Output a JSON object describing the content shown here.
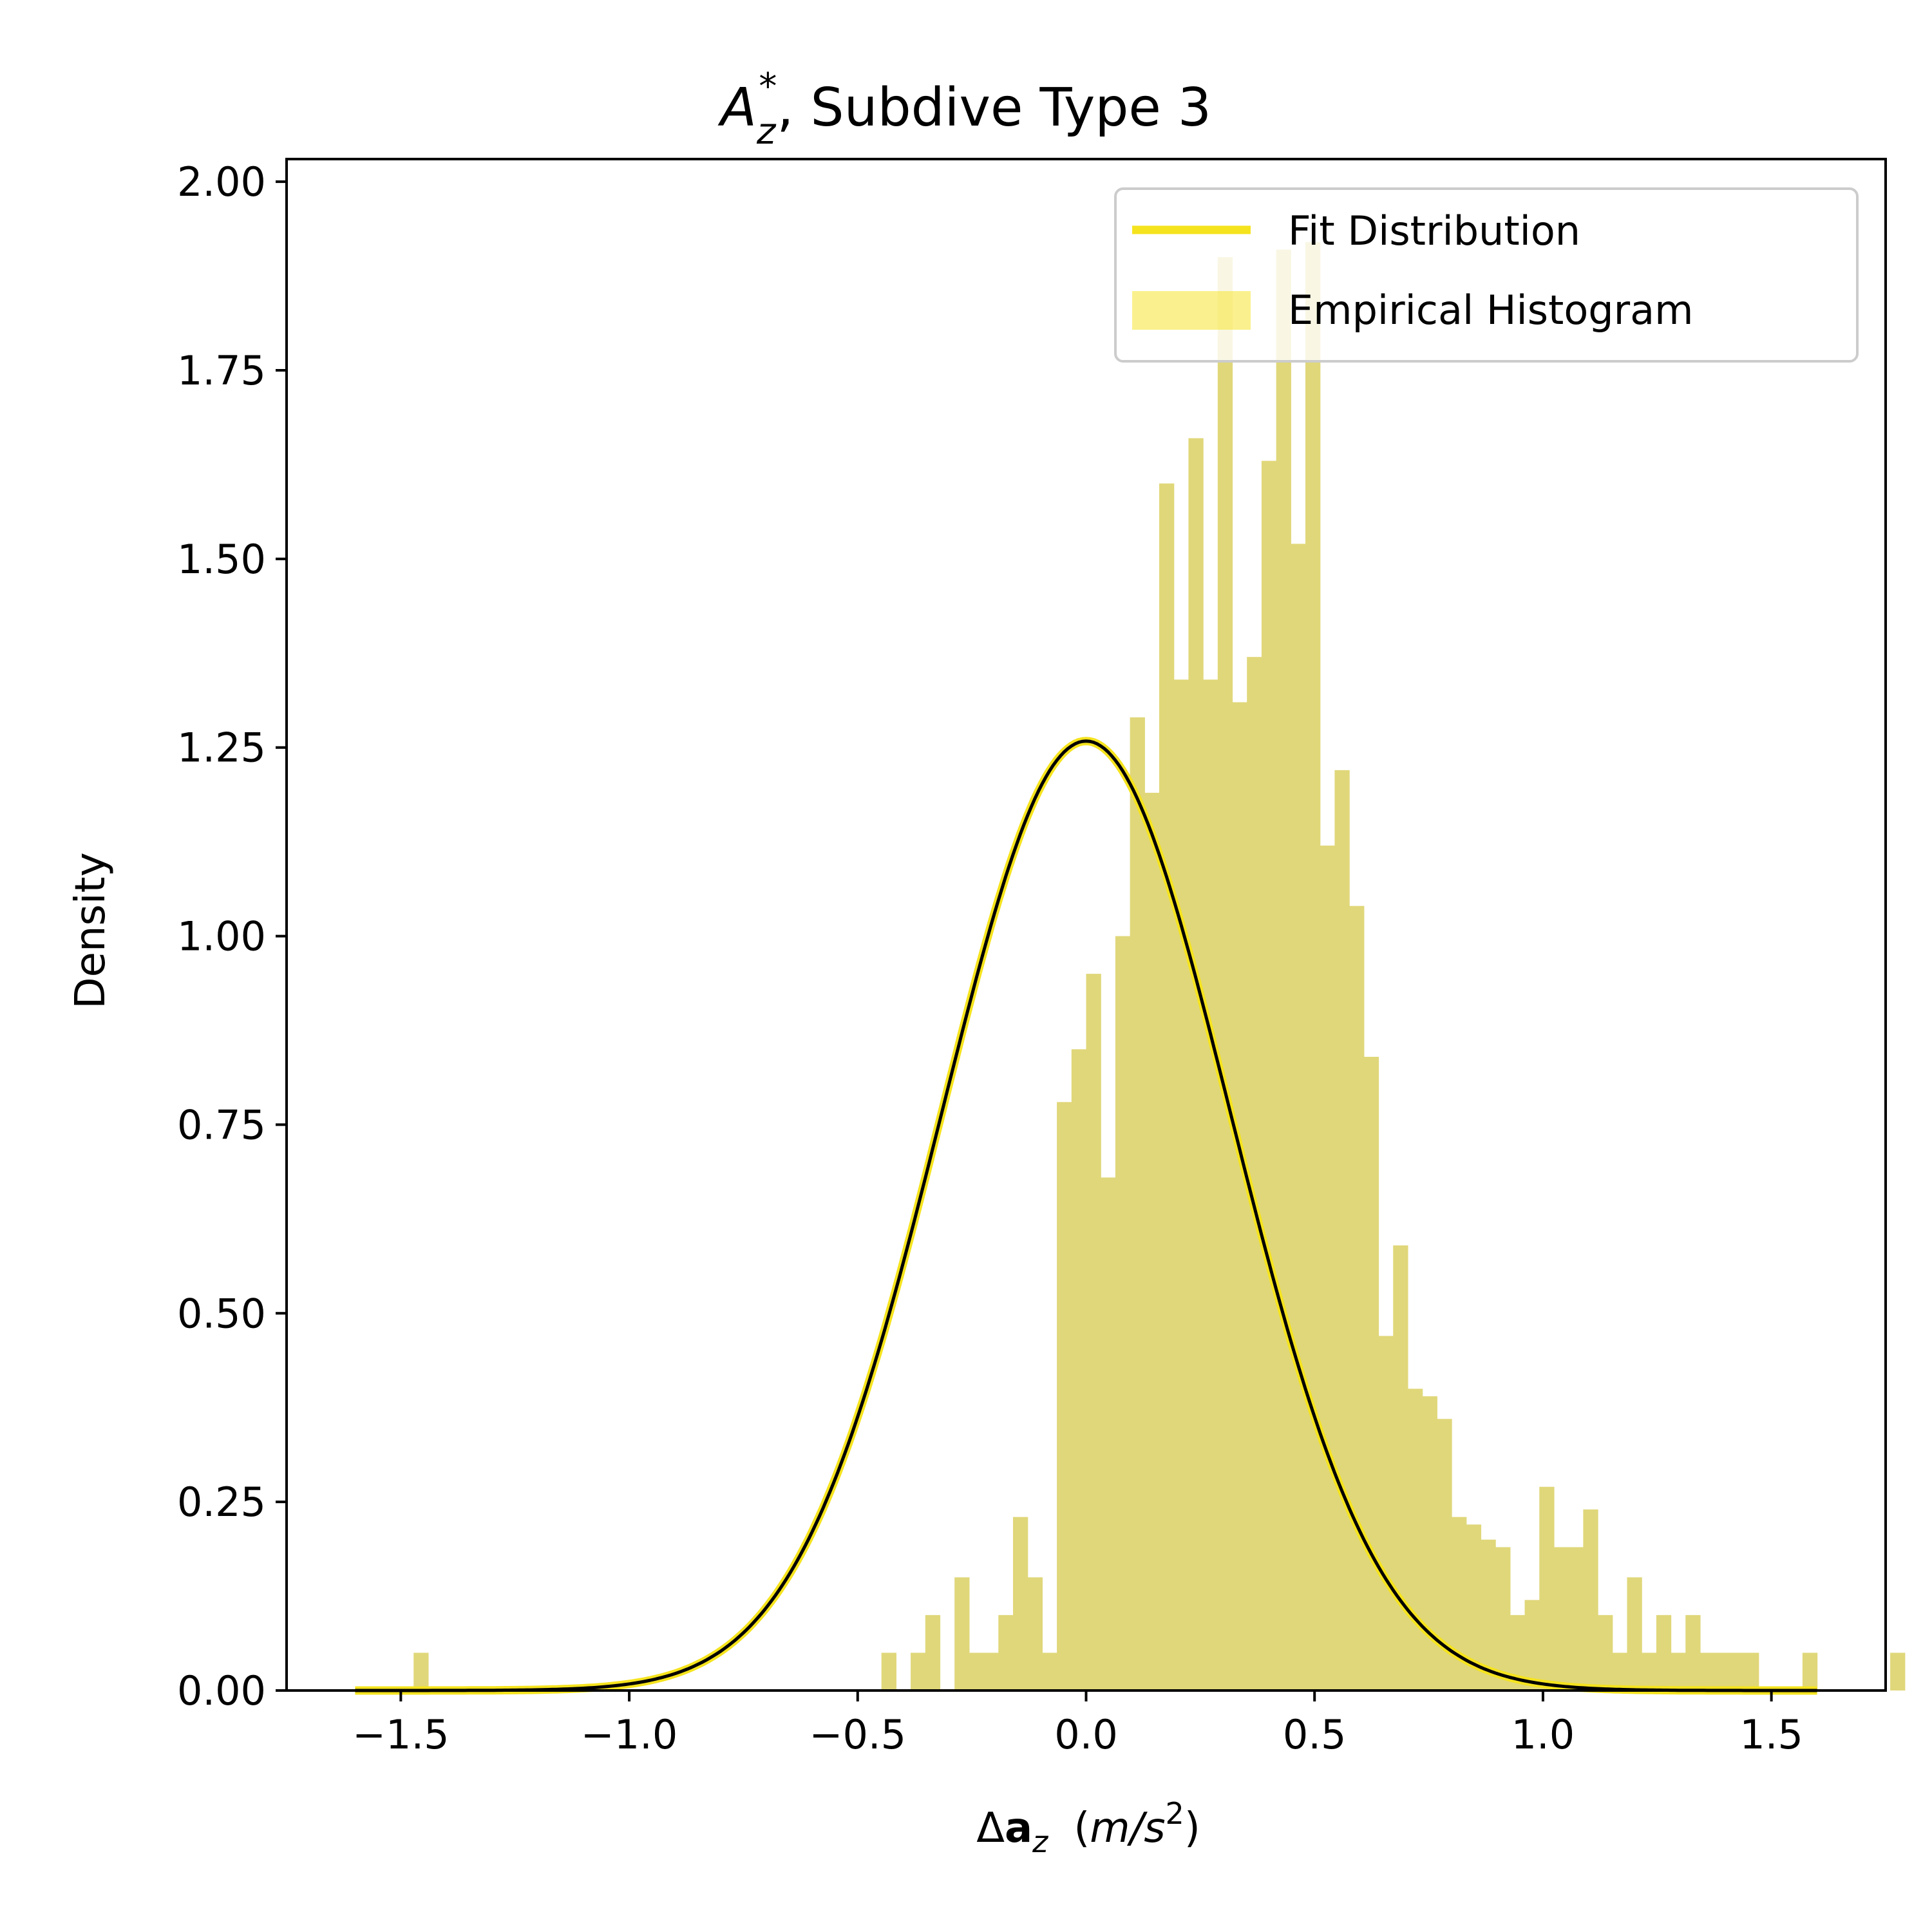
{
  "chart_data": {
    "type": "bar",
    "title_prefix": "A",
    "title_sub": "z",
    "title_sup": "*",
    "title_rest": ", Subdive Type 3",
    "xlabel_prefix": "Δ",
    "xlabel_bold": "a",
    "xlabel_sub": "z",
    "xlabel_unit_open": "(",
    "xlabel_unit_italic": "m/s",
    "xlabel_unit_sup": "2",
    "xlabel_unit_close": ")",
    "ylabel": "Density",
    "xlim": [
      -1.75,
      1.75
    ],
    "ylim": [
      0,
      2.03
    ],
    "x_ticks": [
      -1.5,
      -1.0,
      -0.5,
      0.0,
      0.5,
      1.0,
      1.5
    ],
    "x_tick_labels": [
      "−1.5",
      "−1.0",
      "−0.5",
      "0.0",
      "0.5",
      "1.0",
      "1.5"
    ],
    "y_ticks": [
      0,
      0.25,
      0.5,
      0.75,
      1.0,
      1.25,
      1.5,
      1.75,
      2.0
    ],
    "y_tick_labels": [
      "0.00",
      "0.25",
      "0.50",
      "0.75",
      "1.00",
      "1.25",
      "1.50",
      "1.75",
      "2.00"
    ],
    "histogram": {
      "name": "Empirical Histogram",
      "color": "#e0d77a",
      "bin_start": -1.6,
      "bin_width": 0.032,
      "values": [
        0,
        0,
        0,
        0,
        0.05,
        0,
        0,
        0,
        0,
        0,
        0,
        0,
        0,
        0,
        0,
        0,
        0,
        0,
        0,
        0,
        0,
        0,
        0,
        0,
        0,
        0,
        0,
        0,
        0,
        0,
        0,
        0,
        0,
        0,
        0,
        0,
        0.05,
        0,
        0.05,
        0.1,
        0,
        0.15,
        0.05,
        0.05,
        0.1,
        0.23,
        0.15,
        0.05,
        0.78,
        0.85,
        0.95,
        0.68,
        1.0,
        1.29,
        1.19,
        1.6,
        1.34,
        1.66,
        1.34,
        1.9,
        1.31,
        1.37,
        1.63,
        1.91,
        1.52,
        1.92,
        1.12,
        1.22,
        1.04,
        0.84,
        0.47,
        0.59,
        0.4,
        0.39,
        0.36,
        0.23,
        0.22,
        0.2,
        0.19,
        0.1,
        0.12,
        0.27,
        0.19,
        0.19,
        0.24,
        0.1,
        0.05,
        0.15,
        0.05,
        0.1,
        0.05,
        0.1,
        0.05,
        0.05,
        0.05,
        0.05,
        0,
        0,
        0,
        0.05,
        0,
        0,
        0,
        0,
        0,
        0.05,
        0,
        0,
        0,
        0,
        0.05
      ]
    },
    "fit": {
      "name": "Fit Distribution",
      "color": "#f5e31e",
      "inner_color": "#000000",
      "distribution": "normal",
      "mean": 0.0,
      "std": 0.317,
      "x_range": [
        -1.6,
        1.6
      ]
    },
    "legend": {
      "placement": "top-right",
      "entries": [
        "Fit Distribution",
        "Empirical Histogram"
      ]
    },
    "grid": false
  }
}
